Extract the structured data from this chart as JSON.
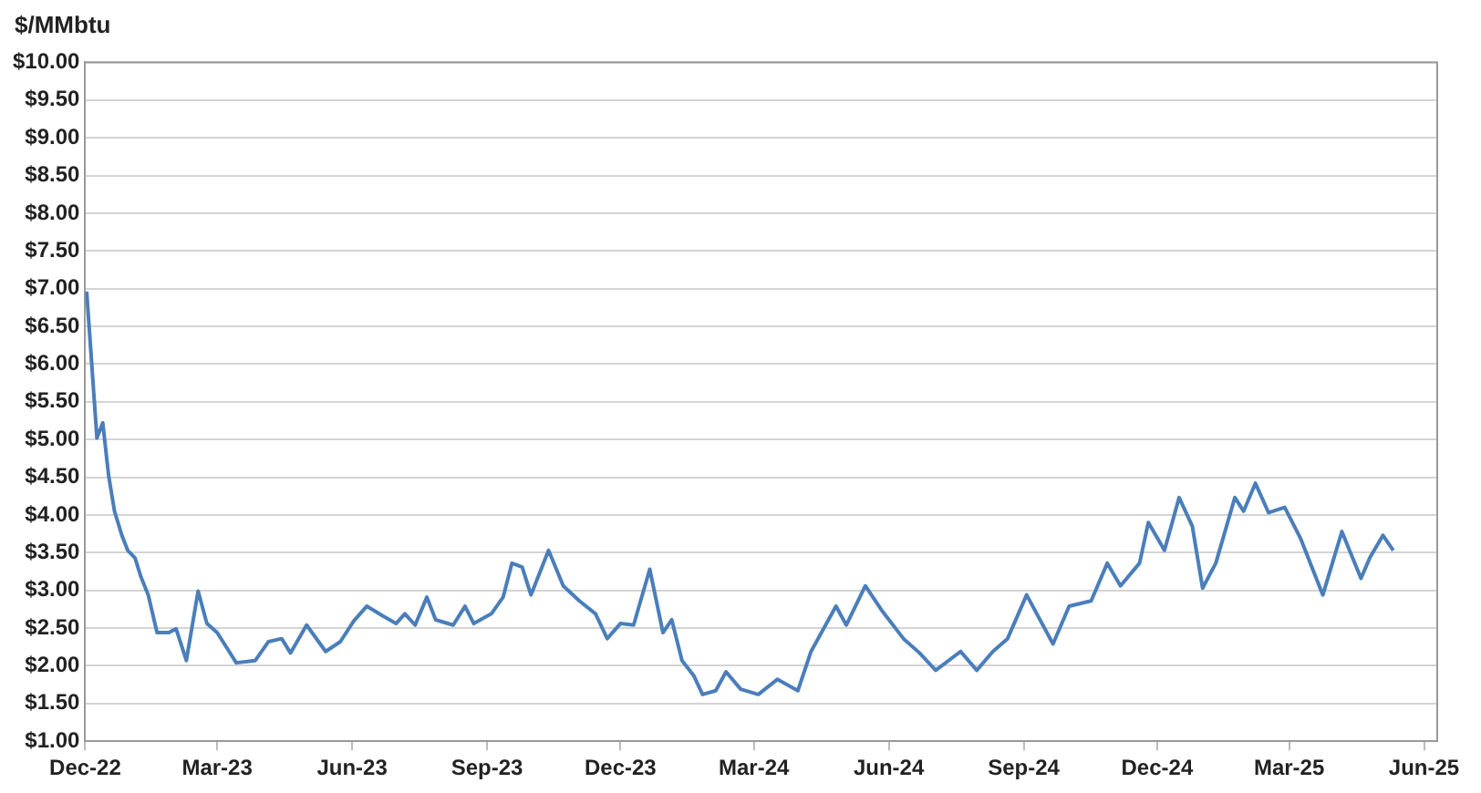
{
  "chart_data": {
    "type": "line",
    "ylabel": "$/MMbtu",
    "x": [
      "2022-12-02",
      "2022-12-04",
      "2022-12-09",
      "2022-12-13",
      "2022-12-17",
      "2022-12-21",
      "2022-12-26",
      "2022-12-30",
      "2023-01-04",
      "2023-01-08",
      "2023-01-13",
      "2023-01-19",
      "2023-01-27",
      "2023-02-01",
      "2023-02-08",
      "2023-02-16",
      "2023-02-22",
      "2023-03-01",
      "2023-03-14",
      "2023-03-27",
      "2023-04-05",
      "2023-04-14",
      "2023-04-20",
      "2023-05-01",
      "2023-05-14",
      "2023-05-24",
      "2023-06-02",
      "2023-06-11",
      "2023-06-22",
      "2023-07-01",
      "2023-07-07",
      "2023-07-14",
      "2023-07-22",
      "2023-07-28",
      "2023-08-09",
      "2023-08-17",
      "2023-08-23",
      "2023-09-04",
      "2023-09-12",
      "2023-09-18",
      "2023-09-25",
      "2023-10-01",
      "2023-10-13",
      "2023-10-23",
      "2023-11-03",
      "2023-11-14",
      "2023-11-22",
      "2023-12-01",
      "2023-12-10",
      "2023-12-21",
      "2023-12-30",
      "2024-01-05",
      "2024-01-12",
      "2024-01-20",
      "2024-01-26",
      "2024-02-04",
      "2024-02-11",
      "2024-02-21",
      "2024-03-04",
      "2024-03-17",
      "2024-03-31",
      "2024-04-09",
      "2024-04-26",
      "2024-05-03",
      "2024-05-16",
      "2024-05-27",
      "2024-06-11",
      "2024-06-22",
      "2024-07-03",
      "2024-07-20",
      "2024-07-31",
      "2024-08-11",
      "2024-08-21",
      "2024-09-03",
      "2024-09-21",
      "2024-10-02",
      "2024-10-17",
      "2024-10-28",
      "2024-11-06",
      "2024-11-19",
      "2024-11-25",
      "2024-12-06",
      "2024-12-16",
      "2024-12-25",
      "2025-01-01",
      "2025-01-10",
      "2025-01-23",
      "2025-01-29",
      "2025-02-06",
      "2025-02-15",
      "2025-02-26",
      "2025-03-09",
      "2025-03-24",
      "2025-04-06",
      "2025-04-19",
      "2025-04-25",
      "2025-05-04",
      "2025-05-11"
    ],
    "series": [
      {
        "color": "#4a7ebb",
        "values": [
          6.96,
          6.41,
          5.02,
          5.22,
          4.52,
          4.05,
          3.73,
          3.53,
          3.43,
          3.18,
          2.94,
          2.44,
          2.44,
          2.49,
          2.07,
          2.99,
          2.56,
          2.44,
          2.04,
          2.07,
          2.32,
          2.36,
          2.17,
          2.54,
          2.19,
          2.32,
          2.59,
          2.79,
          2.66,
          2.56,
          2.69,
          2.54,
          2.91,
          2.61,
          2.54,
          2.79,
          2.56,
          2.69,
          2.91,
          3.36,
          3.31,
          2.94,
          3.53,
          3.06,
          2.86,
          2.69,
          2.36,
          2.56,
          2.54,
          3.28,
          2.44,
          2.61,
          2.07,
          1.87,
          1.62,
          1.67,
          1.92,
          1.69,
          1.62,
          1.82,
          1.67,
          2.19,
          2.79,
          2.54,
          3.06,
          2.74,
          2.36,
          2.17,
          1.94,
          2.19,
          1.94,
          2.19,
          2.36,
          2.94,
          2.29,
          2.79,
          2.86,
          3.36,
          3.06,
          3.36,
          3.9,
          3.53,
          4.23,
          3.85,
          3.03,
          3.36,
          4.23,
          4.05,
          4.42,
          4.03,
          4.1,
          3.68,
          2.94,
          3.78,
          3.16,
          3.43,
          3.73,
          3.53
        ]
      }
    ],
    "xlim": [
      "2022-12-01",
      "2025-06-10"
    ],
    "xticks": [
      {
        "value": "2022-12-01",
        "label": "Dec-22"
      },
      {
        "value": "2023-03-01",
        "label": "Mar-23"
      },
      {
        "value": "2023-06-01",
        "label": "Jun-23"
      },
      {
        "value": "2023-09-01",
        "label": "Sep-23"
      },
      {
        "value": "2023-12-01",
        "label": "Dec-23"
      },
      {
        "value": "2024-03-01",
        "label": "Mar-24"
      },
      {
        "value": "2024-06-01",
        "label": "Jun-24"
      },
      {
        "value": "2024-09-01",
        "label": "Sep-24"
      },
      {
        "value": "2024-12-01",
        "label": "Dec-24"
      },
      {
        "value": "2025-03-01",
        "label": "Mar-25"
      },
      {
        "value": "2025-06-01",
        "label": "Jun-25"
      }
    ],
    "ylim": [
      1,
      10
    ],
    "yticks": [
      {
        "value": 1,
        "label": "$1.00"
      },
      {
        "value": 1.5,
        "label": "$1.50"
      },
      {
        "value": 2,
        "label": "$2.00"
      },
      {
        "value": 2.5,
        "label": "$2.50"
      },
      {
        "value": 3,
        "label": "$3.00"
      },
      {
        "value": 3.5,
        "label": "$3.50"
      },
      {
        "value": 4,
        "label": "$4.00"
      },
      {
        "value": 4.5,
        "label": "$4.50"
      },
      {
        "value": 5,
        "label": "$5.00"
      },
      {
        "value": 5.5,
        "label": "$5.50"
      },
      {
        "value": 6,
        "label": "$6.00"
      },
      {
        "value": 6.5,
        "label": "$6.50"
      },
      {
        "value": 7,
        "label": "$7.00"
      },
      {
        "value": 7.5,
        "label": "$7.50"
      },
      {
        "value": 8,
        "label": "$8.00"
      },
      {
        "value": 8.5,
        "label": "$8.50"
      },
      {
        "value": 9,
        "label": "$9.00"
      },
      {
        "value": 9.5,
        "label": "$9.50"
      },
      {
        "value": 10,
        "label": "$10.00"
      }
    ],
    "grid": "y",
    "legend": false,
    "marker": "none",
    "line_style": "solid"
  }
}
